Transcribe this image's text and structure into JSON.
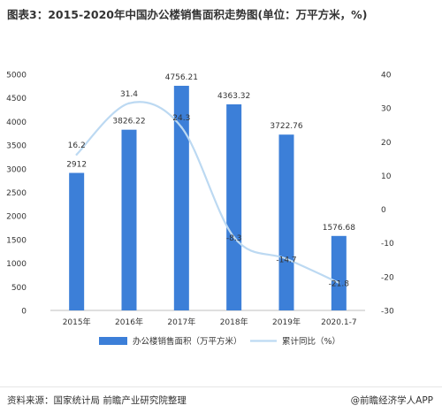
{
  "title": "图表3：2015-2020年中国办公楼销售面积走势图(单位：万平方米，%)",
  "source": "资料来源：国家统计局 前瞻产业研究院整理",
  "credit": "@前瞻经济学人APP",
  "colors": {
    "bar": "#3c7fd8",
    "line": "#bcd9f2",
    "axis_text": "#333333"
  },
  "chart_data": {
    "type": "bar",
    "categories": [
      "2015年",
      "2016年",
      "2017年",
      "2018年",
      "2019年",
      "2020.1-7"
    ],
    "ylim_left": [
      0,
      5000
    ],
    "yticks_left": [
      0,
      500,
      1000,
      1500,
      2000,
      2500,
      3000,
      3500,
      4000,
      4500,
      5000
    ],
    "ylim_right": [
      -30,
      40
    ],
    "yticks_right": [
      -30,
      -20,
      -10,
      0,
      10,
      20,
      30,
      40
    ],
    "series": [
      {
        "name": "办公楼销售面积（万平方米）",
        "type": "bar",
        "axis": "left",
        "values": [
          2912,
          3826.22,
          4756.21,
          4363.32,
          3722.76,
          1576.68
        ],
        "labels": [
          "2912",
          "3826.22",
          "4756.21",
          "4363.32",
          "3722.76",
          "1576.68"
        ]
      },
      {
        "name": "累计同比（%）",
        "type": "line",
        "axis": "right",
        "values": [
          16.2,
          31.4,
          24.3,
          -8.3,
          -14.7,
          -21.8
        ],
        "labels": [
          "16.2",
          "31.4",
          "24.3",
          "-8.3",
          "-14.7",
          "-21.8"
        ]
      }
    ],
    "legend": "bottom",
    "grid": false
  }
}
